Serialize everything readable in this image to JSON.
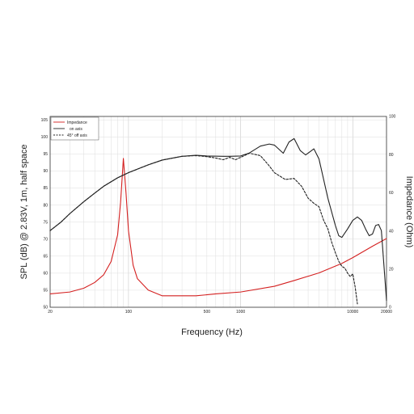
{
  "chart_data": {
    "type": "line",
    "xlabel": "Frequency (Hz)",
    "ylabel_left": "SPL (dB) @ 2.83V, 1m, half space",
    "ylabel_right": "Impedance (Ohm)",
    "xscale": "log",
    "xlim": [
      20,
      20000
    ],
    "ylim_left": [
      50,
      106
    ],
    "ylim_right": [
      0,
      100
    ],
    "x_tick_labels": [
      "20",
      "100",
      "500",
      "1000",
      "10000",
      "20000"
    ],
    "x_tick_values": [
      20,
      100,
      500,
      1000,
      10000,
      20000
    ],
    "y_left_ticks": [
      50,
      55,
      60,
      65,
      70,
      75,
      80,
      85,
      90,
      95,
      100,
      105
    ],
    "y_right_ticks": [
      0,
      20,
      40,
      60,
      80,
      100
    ],
    "grid": true,
    "legend_position": "top-left",
    "series": [
      {
        "name": "Impedance",
        "axis": "right",
        "color": "#d42020",
        "dash": "solid",
        "x": [
          20,
          30,
          40,
          50,
          60,
          70,
          80,
          85,
          90,
          95,
          100,
          110,
          120,
          150,
          200,
          300,
          400,
          600,
          1000,
          2000,
          3000,
          5000,
          8000,
          10000,
          15000,
          20000
        ],
        "y": [
          7,
          8,
          10,
          13,
          17,
          24,
          38,
          55,
          78,
          60,
          40,
          22,
          15,
          9,
          6,
          6,
          6,
          7,
          8,
          11,
          14,
          18,
          23,
          26,
          32,
          36
        ]
      },
      {
        "name": "on axis",
        "axis": "left",
        "color": "#222222",
        "dash": "solid",
        "x": [
          20,
          25,
          30,
          40,
          50,
          60,
          80,
          100,
          150,
          200,
          300,
          400,
          500,
          700,
          800,
          1000,
          1200,
          1500,
          1800,
          2000,
          2400,
          2700,
          3000,
          3400,
          3800,
          4500,
          5000,
          6000,
          7000,
          7500,
          8000,
          9000,
          10000,
          11000,
          12000,
          13000,
          14000,
          15000,
          16000,
          17000,
          18000,
          19000,
          20000
        ],
        "y": [
          72.5,
          75,
          77.5,
          81,
          83.5,
          85.5,
          88,
          89.5,
          91.8,
          93.2,
          94.3,
          94.6,
          94.4,
          94.3,
          94.3,
          94.4,
          95.3,
          97.3,
          97.9,
          97.6,
          95.2,
          98.5,
          99.5,
          96,
          94.7,
          96.5,
          93.5,
          82,
          74,
          71,
          70.5,
          73,
          75.5,
          76.5,
          75.5,
          73,
          71,
          71.5,
          74,
          74.3,
          72.5,
          62,
          52
        ]
      },
      {
        "name": "45° off axis",
        "axis": "left",
        "color": "#222222",
        "dash": "dashed",
        "x": [
          20,
          25,
          30,
          40,
          50,
          60,
          80,
          100,
          150,
          200,
          300,
          400,
          500,
          600,
          700,
          800,
          900,
          1000,
          1200,
          1500,
          1800,
          2000,
          2500,
          3000,
          3500,
          4000,
          4500,
          5000,
          5500,
          6000,
          6500,
          7000,
          7500,
          8000,
          8500,
          9000,
          9500,
          10000,
          10500,
          11000
        ],
        "y": [
          72.5,
          75,
          77.5,
          81,
          83.5,
          85.5,
          88,
          89.5,
          91.8,
          93.2,
          94.3,
          94.5,
          94.2,
          93.8,
          93.3,
          94,
          93.3,
          94,
          95.2,
          94.5,
          91.5,
          89.5,
          87.5,
          87.8,
          85.5,
          82,
          80.5,
          79.5,
          75.5,
          73,
          69,
          66,
          63.5,
          62,
          61.5,
          60,
          59,
          59.8,
          56,
          51
        ]
      }
    ]
  }
}
